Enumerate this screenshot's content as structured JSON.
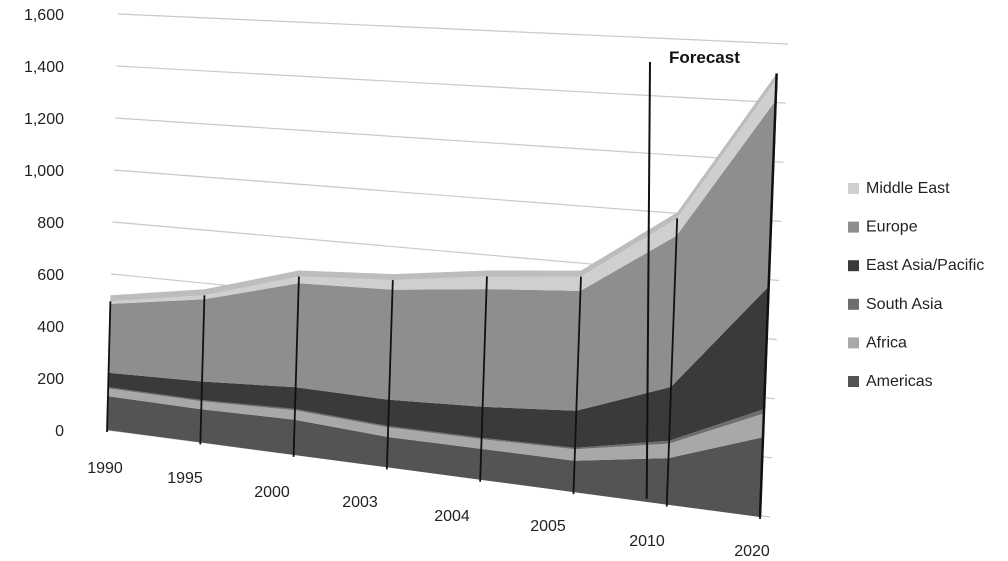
{
  "chart_data": {
    "type": "area",
    "stacked": true,
    "three_d": true,
    "categories": [
      "1990",
      "1995",
      "2000",
      "2003",
      "2004",
      "2005",
      "2010",
      "2020"
    ],
    "ylim": [
      0,
      1600
    ],
    "yticks": [
      0,
      200,
      400,
      600,
      800,
      1000,
      1200,
      1400,
      1600
    ],
    "ytick_labels": [
      "0",
      "200",
      "400",
      "600",
      "800",
      "1,000",
      "1,200",
      "1,400",
      "1,600"
    ],
    "grid": true,
    "legend_position": "right",
    "annotation": "Forecast",
    "series": [
      {
        "name": "Americas",
        "values": [
          130,
          125,
          130,
          110,
          110,
          110,
          160,
          270
        ],
        "color": "#545454"
      },
      {
        "name": "Africa",
        "values": [
          30,
          30,
          35,
          35,
          35,
          40,
          50,
          80
        ],
        "color": "#a8a8a8"
      },
      {
        "name": "South Asia",
        "values": [
          5,
          5,
          5,
          5,
          5,
          5,
          10,
          15
        ],
        "color": "#6e6e6e"
      },
      {
        "name": "East Asia/Pacific",
        "values": [
          55,
          70,
          80,
          95,
          110,
          130,
          185,
          415
        ],
        "color": "#3a3a3a"
      },
      {
        "name": "Europe",
        "values": [
          265,
          310,
          385,
          400,
          420,
          420,
          520,
          630
        ],
        "color": "#8e8e8e"
      },
      {
        "name": "Middle East",
        "values": [
          10,
          15,
          25,
          35,
          45,
          50,
          60,
          70
        ],
        "color": "#cfcfcf"
      }
    ]
  }
}
